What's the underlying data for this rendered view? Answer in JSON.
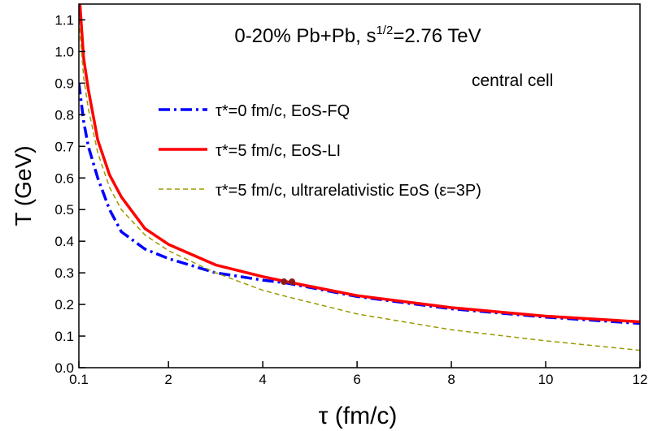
{
  "chart_data": {
    "type": "line",
    "title": [
      "0-20% Pb+Pb, s",
      "1/2",
      "=2.76 TeV"
    ],
    "annotation": "central cell",
    "xlabel": "τ (fm/c)",
    "ylabel": "T (GeV)",
    "x": [
      0.1,
      0.2,
      0.3,
      0.5,
      0.75,
      1,
      1.5,
      2,
      3,
      4,
      4.5,
      6,
      8,
      10,
      12
    ],
    "series": [
      {
        "name": "τ*=0 fm/c, EoS-FQ",
        "color": "#0000ff",
        "style": "dash-dot",
        "values": [
          0.9,
          0.78,
          0.7,
          0.6,
          0.5,
          0.43,
          0.375,
          0.345,
          0.3,
          0.277,
          0.268,
          0.225,
          0.186,
          0.16,
          0.14
        ]
      },
      {
        "name": "τ*=5 fm/c, EoS-LI",
        "color": "#ff0000",
        "style": "solid",
        "values": [
          1.2,
          0.98,
          0.88,
          0.72,
          0.61,
          0.54,
          0.44,
          0.39,
          0.325,
          0.288,
          0.272,
          0.228,
          0.19,
          0.163,
          0.145
        ]
      },
      {
        "name": "τ*=5 fm/c, ultrarelativistic EoS (ε=3P)",
        "color": "#9a9a00",
        "style": "dashed",
        "values": [
          1.1,
          0.92,
          0.82,
          0.68,
          0.57,
          0.5,
          0.42,
          0.37,
          0.3,
          0.245,
          0.225,
          0.17,
          0.12,
          0.085,
          0.055
        ]
      }
    ],
    "points": {
      "x": [
        4.45,
        4.62
      ],
      "y": [
        0.272,
        0.272
      ],
      "color": "#8b1a1a"
    },
    "xlim": [
      0.1,
      12
    ],
    "xticks": [
      0.1,
      2,
      4,
      6,
      8,
      10,
      12
    ],
    "ylim": [
      0,
      1.15
    ],
    "yticks": [
      {
        "value": 0,
        "label": "0.0"
      },
      0.1,
      0.2,
      0.3,
      0.4,
      0.5,
      0.6,
      0.7,
      0.8,
      0.9,
      {
        "value": 1,
        "label": "1.0"
      },
      1.1
    ]
  }
}
